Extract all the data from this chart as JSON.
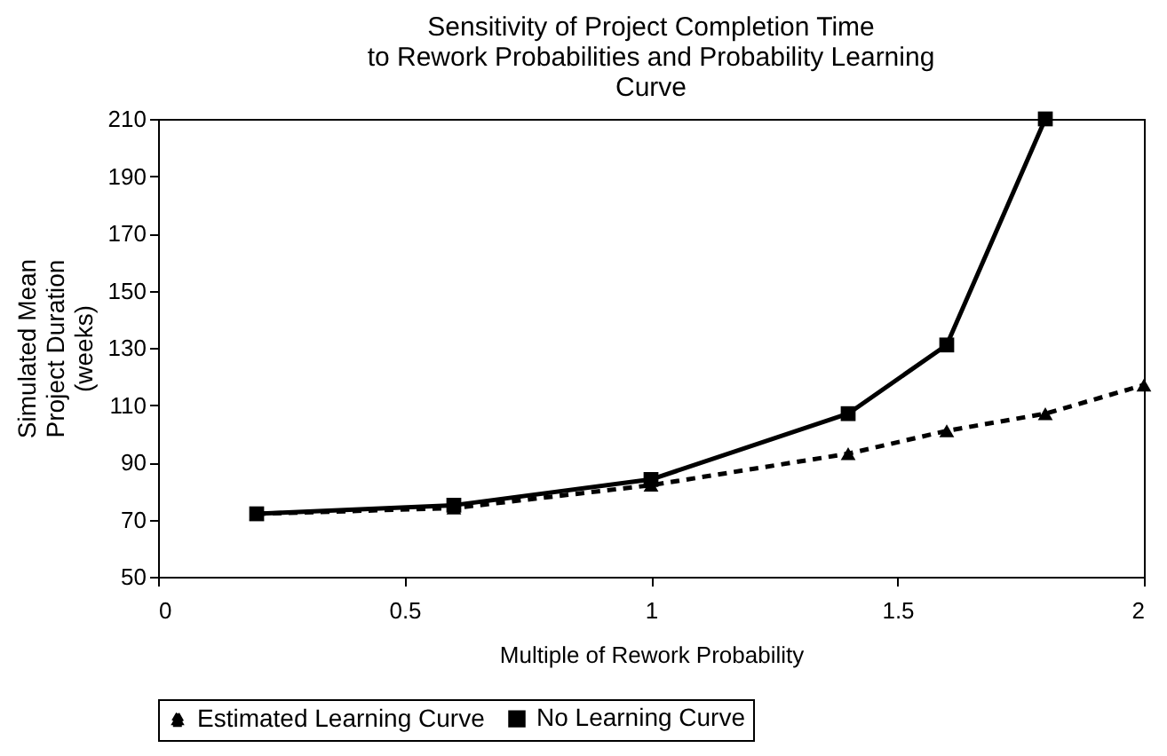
{
  "chart_data": {
    "type": "line",
    "title": "Sensitivity of Project Completion Time\nto Rework Probabilities and Probability Learning\nCurve",
    "xlabel": "Multiple of Rework Probability",
    "ylabel": "Simulated Mean\nProject Duration\n(weeks)",
    "xlim": [
      0,
      2
    ],
    "xticks": [
      0,
      0.5,
      1,
      1.5,
      2
    ],
    "ylim": [
      50,
      210
    ],
    "yticks": [
      50,
      70,
      90,
      110,
      130,
      150,
      170,
      190,
      210
    ],
    "grid": false,
    "legend": "bottom",
    "series": [
      {
        "name": "Estimated Learning Curve",
        "color": "#000000",
        "marker": "triangle",
        "line_style": "dashed",
        "x": [
          0.2,
          0.6,
          1.0,
          1.4,
          1.6,
          1.8,
          2.0
        ],
        "values": [
          72,
          74,
          82,
          93,
          101,
          107,
          117
        ]
      },
      {
        "name": "No Learning Curve",
        "color": "#000000",
        "marker": "square",
        "line_style": "solid",
        "x": [
          0.2,
          0.6,
          1.0,
          1.4,
          1.6,
          1.8
        ],
        "values": [
          72,
          75,
          84,
          107,
          131,
          210
        ]
      }
    ]
  }
}
